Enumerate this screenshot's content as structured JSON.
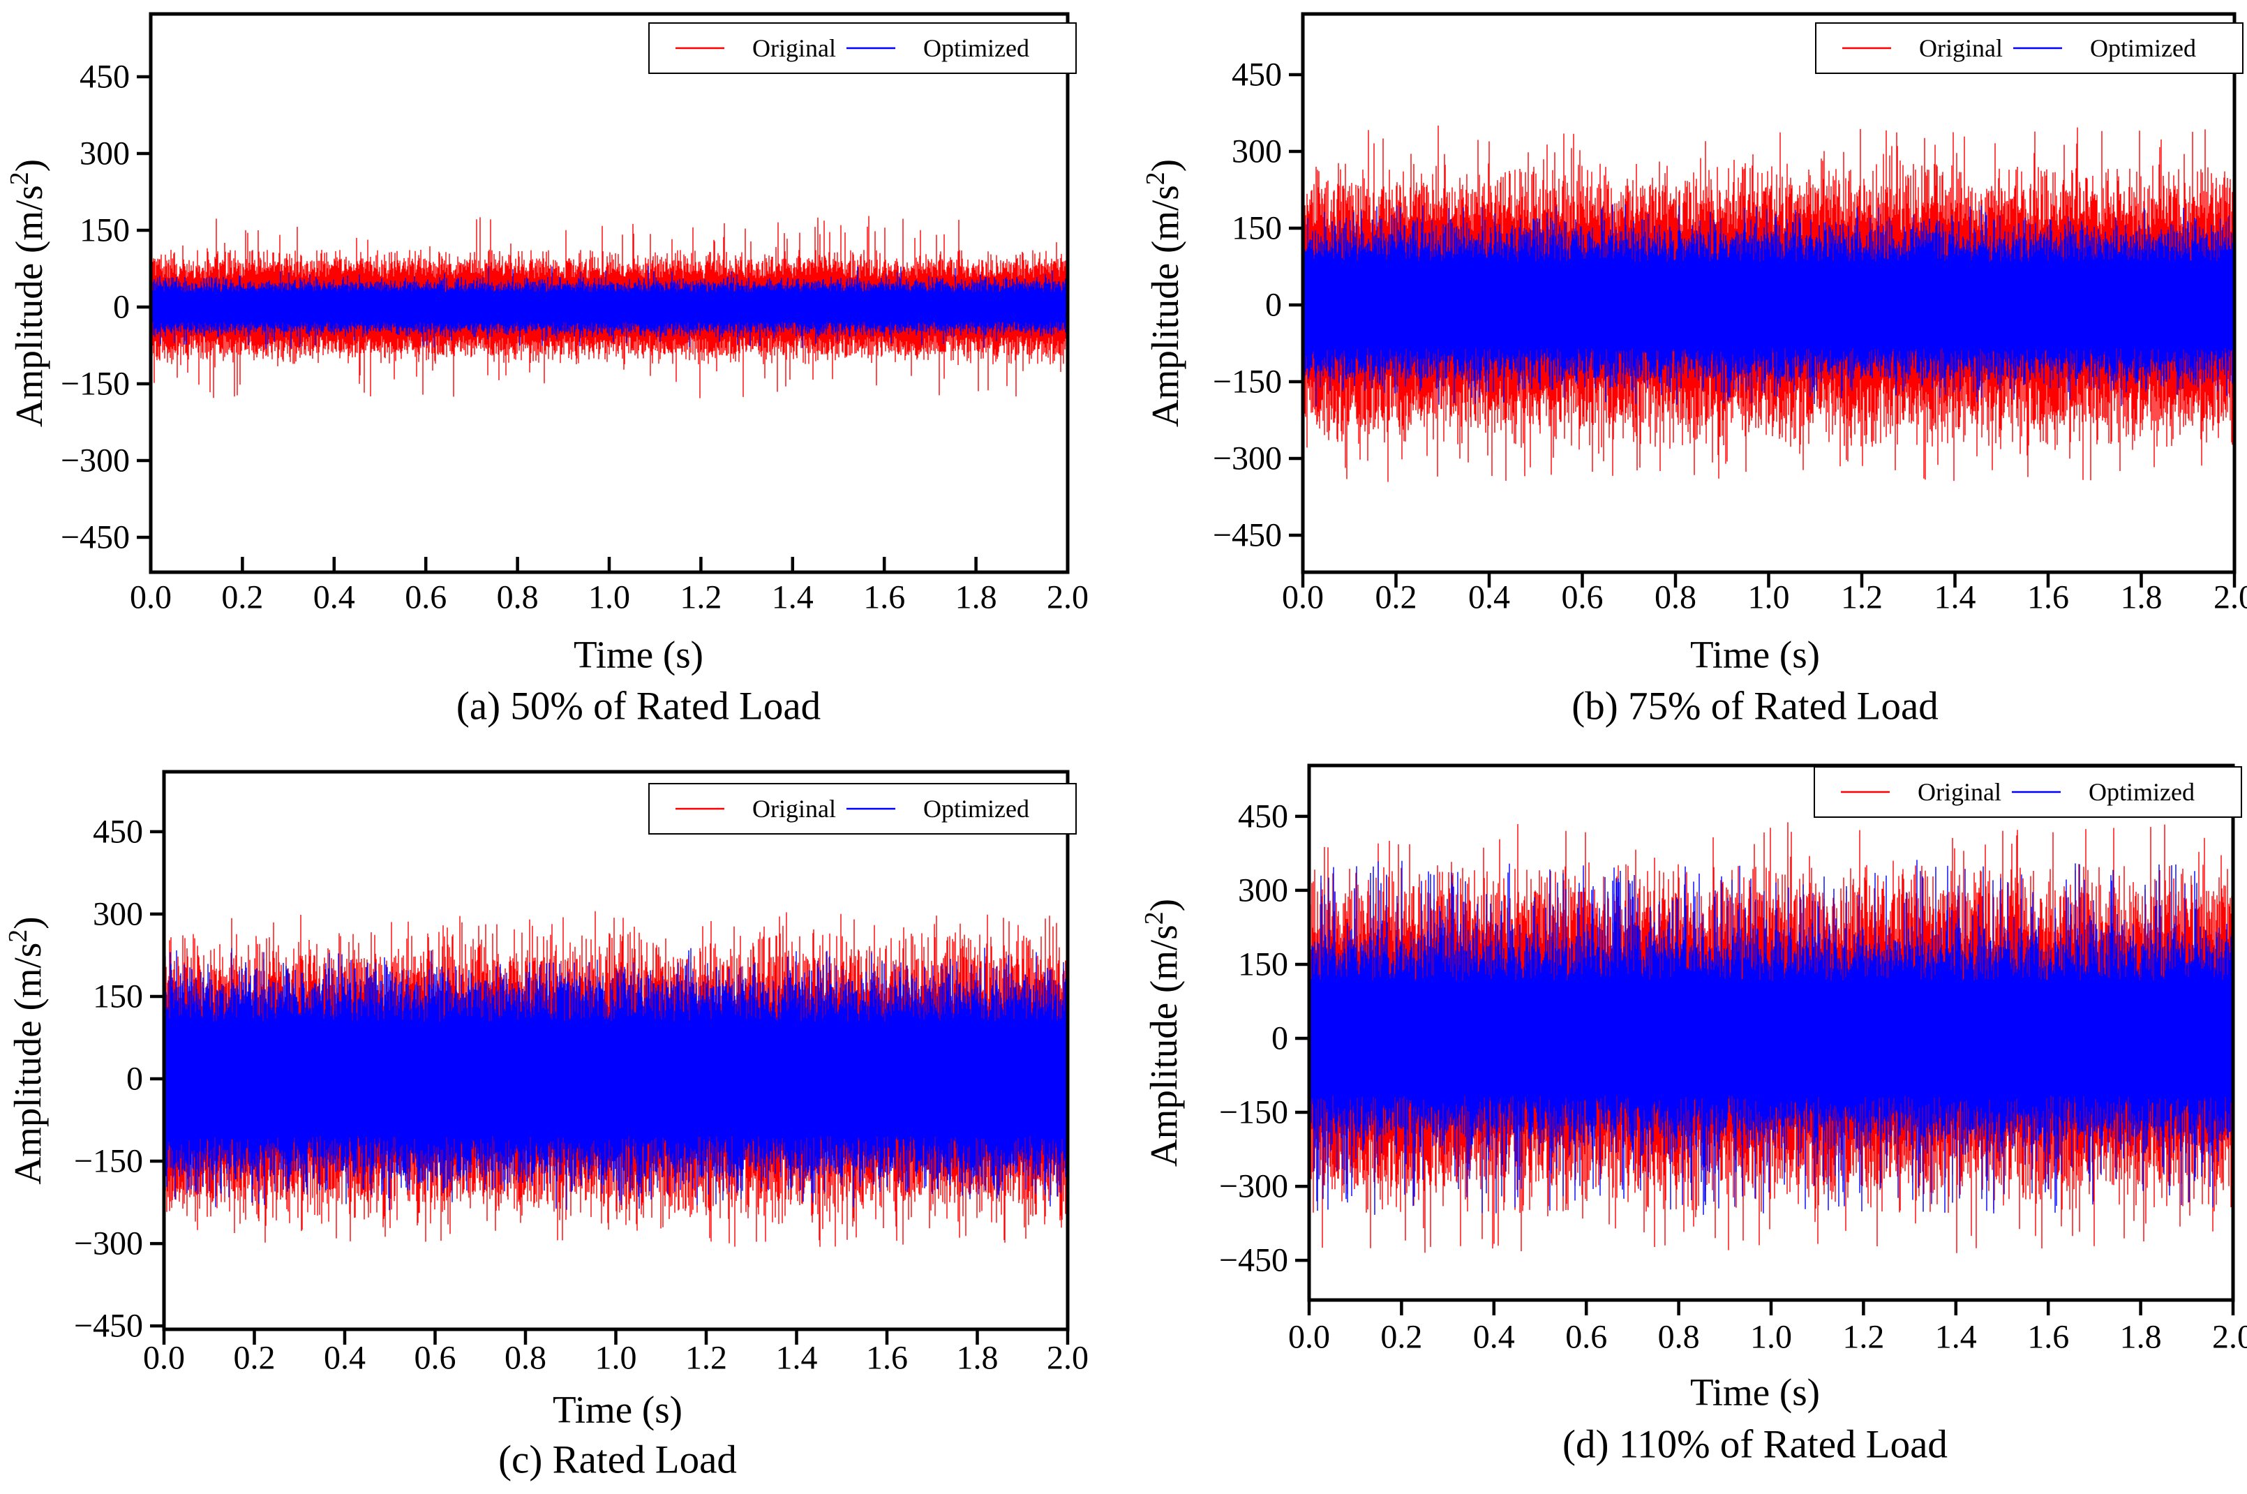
{
  "figure": {
    "description": "2x2 grid of vibration time-series subplots comparing Original vs Optimized signals under different load conditions",
    "background": "#ffffff",
    "colors": {
      "axis": "#000000",
      "original": "#ff0000",
      "optimized": "#0000ff"
    },
    "legend": {
      "position": "upper right",
      "items": [
        {
          "label": "Original",
          "color": "#ff0000"
        },
        {
          "label": "Optimized",
          "color": "#0000ff"
        }
      ]
    }
  },
  "chart_data": [
    {
      "type": "line",
      "panel": "(a)",
      "title": "(a) 50% of Rated Load",
      "xlabel": "Time (s)",
      "ylabel": "Amplitude (m/s²)",
      "ylabel_base": "Amplitude (m/s",
      "ylabel_sup": "2",
      "ylabel_close": ")",
      "xlim": [
        0.0,
        2.0
      ],
      "ylim": [
        -518,
        573
      ],
      "duration_s": 2.0,
      "xticks": [
        0.0,
        0.2,
        0.4,
        0.6,
        0.8,
        1.0,
        1.2,
        1.4,
        1.6,
        1.8,
        2.0
      ],
      "yticks": [
        450,
        300,
        150,
        0,
        -150,
        -300,
        -450
      ],
      "xtick_labels": [
        "0.0",
        "0.2",
        "0.4",
        "0.6",
        "0.8",
        "1.0",
        "1.2",
        "1.4",
        "1.6",
        "1.8",
        "2.0"
      ],
      "ytick_labels": [
        "450",
        "300",
        "150",
        "0",
        "−150",
        "−300",
        "−450"
      ],
      "grid": false,
      "legend": [
        "Original",
        "Optimized"
      ],
      "series": [
        {
          "name": "Original",
          "color": "#ff0000",
          "signal": "zero-mean broadband random vibration",
          "mean": 0,
          "envelope_typical_amplitude": 95,
          "envelope_peak_amplitude": 175,
          "spike_rate": 0.05
        },
        {
          "name": "Optimized",
          "color": "#0000ff",
          "signal": "zero-mean broadband random vibration",
          "mean": 0,
          "envelope_typical_amplitude": 50,
          "envelope_peak_amplitude": 80,
          "spike_rate": 0.04
        }
      ]
    },
    {
      "type": "line",
      "panel": "(b)",
      "title": "(b) 75% of Rated Load",
      "xlabel": "Time (s)",
      "ylabel": "Amplitude (m/s²)",
      "ylabel_base": "Amplitude (m/s",
      "ylabel_sup": "2",
      "ylabel_close": ")",
      "xlim": [
        0.0,
        2.0
      ],
      "ylim": [
        -521,
        569
      ],
      "duration_s": 2.0,
      "xticks": [
        0.0,
        0.2,
        0.4,
        0.6,
        0.8,
        1.0,
        1.2,
        1.4,
        1.6,
        1.8,
        2.0
      ],
      "yticks": [
        450,
        300,
        150,
        0,
        -150,
        -300,
        -450
      ],
      "xtick_labels": [
        "0.0",
        "0.2",
        "0.4",
        "0.6",
        "0.8",
        "1.0",
        "1.2",
        "1.4",
        "1.6",
        "1.8",
        "2.0"
      ],
      "ytick_labels": [
        "450",
        "300",
        "150",
        "0",
        "−150",
        "−300",
        "−450"
      ],
      "grid": false,
      "legend": [
        "Original",
        "Optimized"
      ],
      "series": [
        {
          "name": "Original",
          "color": "#ff0000",
          "signal": "zero-mean broadband random vibration",
          "mean": 0,
          "envelope_typical_amplitude": 235,
          "envelope_peak_amplitude": 345,
          "spike_rate": 0.06
        },
        {
          "name": "Optimized",
          "color": "#0000ff",
          "signal": "zero-mean broadband random vibration",
          "mean": 0,
          "envelope_typical_amplitude": 145,
          "envelope_peak_amplitude": 195,
          "spike_rate": 0.05
        }
      ]
    },
    {
      "type": "line",
      "panel": "(c)",
      "title": "(c) Rated Load",
      "xlabel": "Time (s)",
      "ylabel": "Amplitude (m/s²)",
      "ylabel_base": "Amplitude (m/s",
      "ylabel_sup": "2",
      "ylabel_close": ")",
      "xlim": [
        0.0,
        2.0
      ],
      "ylim": [
        -456,
        559
      ],
      "duration_s": 2.0,
      "xticks": [
        0.0,
        0.2,
        0.4,
        0.6,
        0.8,
        1.0,
        1.2,
        1.4,
        1.6,
        1.8,
        2.0
      ],
      "yticks": [
        450,
        300,
        150,
        0,
        -150,
        -300,
        -450
      ],
      "xtick_labels": [
        "0.0",
        "0.2",
        "0.4",
        "0.6",
        "0.8",
        "1.0",
        "1.2",
        "1.4",
        "1.6",
        "1.8",
        "2.0"
      ],
      "ytick_labels": [
        "450",
        "300",
        "150",
        "0",
        "−150",
        "−300",
        "−450"
      ],
      "grid": false,
      "legend": [
        "Original",
        "Optimized"
      ],
      "series": [
        {
          "name": "Original",
          "color": "#ff0000",
          "signal": "zero-mean broadband random vibration",
          "mean": 0,
          "envelope_typical_amplitude": 225,
          "envelope_peak_amplitude": 300,
          "spike_rate": 0.07
        },
        {
          "name": "Optimized",
          "color": "#0000ff",
          "signal": "zero-mean broadband random vibration",
          "mean": 0,
          "envelope_typical_amplitude": 180,
          "envelope_peak_amplitude": 235,
          "spike_rate": 0.05
        }
      ]
    },
    {
      "type": "line",
      "panel": "(d)",
      "title": "(d) 110% of Rated Load",
      "xlabel": "Time (s)",
      "ylabel": "Amplitude (m/s²)",
      "ylabel_base": "Amplitude (m/s",
      "ylabel_sup": "2",
      "ylabel_close": ")",
      "xlim": [
        0.0,
        2.0
      ],
      "ylim": [
        -530,
        553
      ],
      "duration_s": 2.0,
      "xticks": [
        0.0,
        0.2,
        0.4,
        0.6,
        0.8,
        1.0,
        1.2,
        1.4,
        1.6,
        1.8,
        2.0
      ],
      "yticks": [
        450,
        300,
        150,
        0,
        -150,
        -300,
        -450
      ],
      "xtick_labels": [
        "0.0",
        "0.2",
        "0.4",
        "0.6",
        "0.8",
        "1.0",
        "1.2",
        "1.4",
        "1.6",
        "1.8",
        "2.0"
      ],
      "ytick_labels": [
        "450",
        "300",
        "150",
        "0",
        "−150",
        "−300",
        "−450"
      ],
      "grid": false,
      "legend": [
        "Original",
        "Optimized"
      ],
      "series": [
        {
          "name": "Original",
          "color": "#ff0000",
          "signal": "zero-mean broadband random vibration",
          "mean": 0,
          "envelope_typical_amplitude": 300,
          "envelope_peak_amplitude": 430,
          "spike_rate": 0.06
        },
        {
          "name": "Optimized",
          "color": "#0000ff",
          "signal": "zero-mean broadband random vibration",
          "mean": 0,
          "envelope_typical_amplitude": 200,
          "envelope_peak_amplitude": 355,
          "spike_rate": 0.15
        }
      ]
    }
  ]
}
